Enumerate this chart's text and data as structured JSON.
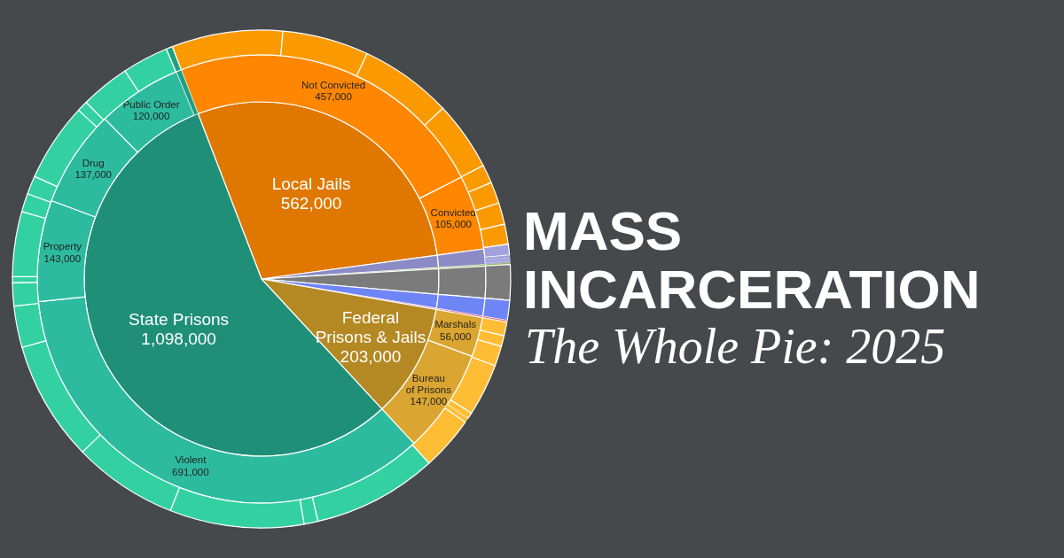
{
  "chart_data": [
    {
      "type": "pie",
      "title": "MASS INCARCERATION",
      "subtitle": "The Whole Pie: 2025",
      "categories": [
        "Local Jails",
        null,
        null,
        null,
        null,
        null,
        "Federal Prisons & Jails",
        "State Prisons"
      ],
      "values": [
        562000,
        22000,
        2000,
        45000,
        25000,
        2000,
        203000,
        1098000
      ],
      "value_labels": [
        "562,000",
        null,
        null,
        null,
        null,
        null,
        "203,000",
        "1,098,000"
      ],
      "colors": [
        "#e07800",
        "#8c8bc6",
        "#7ab534",
        "#7b7b7b",
        "#6e85f5",
        "#e0506a",
        "#b48822",
        "#1f8f78"
      ]
    },
    {
      "type": "donut",
      "categories": [
        "Not Convicted",
        "Convicted",
        null,
        null,
        null,
        null,
        null,
        "Marshals",
        "Bureau of Prisons",
        "Violent",
        "Property",
        "Drug",
        "Public Order",
        null
      ],
      "values": [
        457000,
        105000,
        22000,
        2000,
        45000,
        25000,
        2000,
        56000,
        147000,
        691000,
        143000,
        137000,
        120000,
        7000
      ],
      "value_labels": [
        "457,000",
        "105,000",
        null,
        null,
        null,
        null,
        null,
        "56,000",
        "147,000",
        "691,000",
        "143,000",
        "137,000",
        "120,000",
        null
      ],
      "colors": [
        "#ff8600",
        "#ff8600",
        "#8c8bc6",
        "#7ab534",
        "#7b7b7b",
        "#6e85f5",
        "#e0506a",
        "#dba531",
        "#dba531",
        "#2dbb9f",
        "#2dbb9f",
        "#2dbb9f",
        "#2dbb9f",
        "#1f9f82"
      ]
    },
    {
      "type": "donut",
      "categories": [
        null,
        null,
        null,
        null,
        null,
        null,
        null,
        null,
        null,
        null,
        null,
        null,
        null,
        null,
        null,
        null,
        null,
        null,
        null,
        null,
        null,
        null,
        null,
        null,
        null,
        null,
        null,
        null,
        null,
        null,
        null,
        null,
        null,
        null,
        null,
        null,
        null,
        null,
        null
      ],
      "values": [
        7.2,
        5.6,
        6.0,
        4.5,
        1.2,
        1.4,
        1.4,
        1.3,
        0.7,
        0.2,
        0.2,
        0.1,
        0.1,
        2.3,
        1.3,
        0.1,
        0.9,
        0.7,
        1.3,
        3.4,
        0.4,
        0.3,
        3.5,
        8.1,
        0.9,
        8.7,
        6.8,
        7.8,
        2.7,
        1.5,
        0.4,
        4.2,
        1.2,
        1.2,
        5.1,
        0.7,
        3.2,
        3.0,
        0.4
      ],
      "colors": [
        "#fb9a00",
        "#fb9a00",
        "#fb9a00",
        "#fb9a00",
        "#fb9a00",
        "#fb9a00",
        "#fb9a00",
        "#fb9a00",
        "#a3a0dd",
        "#a3a0dd",
        "#a3a0dd",
        "#a3a0dd",
        "#7ab534",
        "#7b7b7b",
        "#6e85f5",
        "#e0506a",
        "#ffbd35",
        "#ffbd35",
        "#ffbd35",
        "#ffbd35",
        "#ffbd35",
        "#ffbd35",
        "#ffbd35",
        "#33d1a1",
        "#33d1a1",
        "#33d1a1",
        "#33d1a1",
        "#33d1a1",
        "#33d1a1",
        "#33d1a1",
        "#33d1a1",
        "#33d1a1",
        "#33d1a1",
        "#33d1a1",
        "#33d1a1",
        "#33d1a1",
        "#33d1a1",
        "#33d1a1",
        "#1f9f82"
      ]
    }
  ]
}
